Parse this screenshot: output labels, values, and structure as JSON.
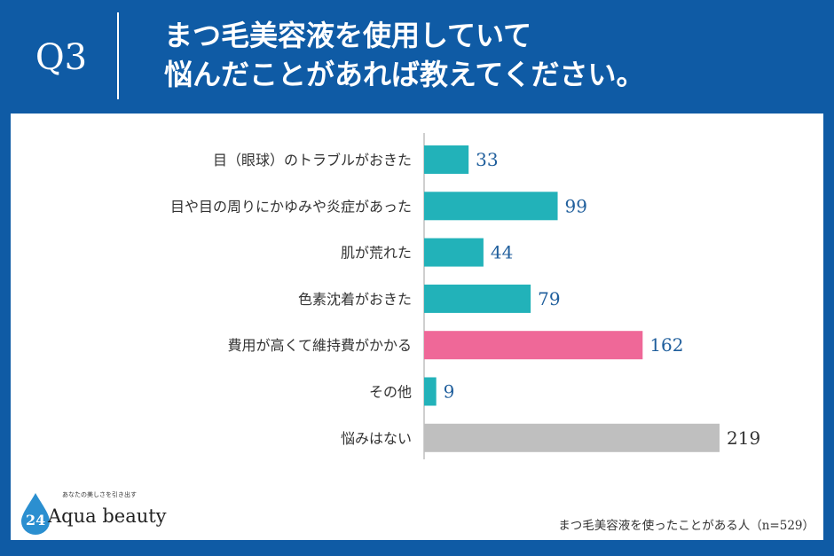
{
  "header": {
    "question": "Q3",
    "title_line1": "まつ毛美容液を使用していて",
    "title_line2": "悩んだことがあれば教えてください。"
  },
  "chart_data": {
    "type": "bar",
    "orientation": "horizontal",
    "categories": [
      "目（眼球）のトラブルがおきた",
      "目や目の周りにかゆみや炎症があった",
      "肌が荒れた",
      "色素沈着がおきた",
      "費用が高くて維持費がかかる",
      "その他",
      "悩みはない"
    ],
    "values": [
      33,
      99,
      44,
      79,
      162,
      9,
      219
    ],
    "colors": [
      "#22b2b9",
      "#22b2b9",
      "#22b2b9",
      "#22b2b9",
      "#ef6898",
      "#22b2b9",
      "#bfbfbf"
    ],
    "label_colors": [
      "#1f5e9c",
      "#1f5e9c",
      "#1f5e9c",
      "#1f5e9c",
      "#1f5e9c",
      "#1f5e9c",
      "#333333"
    ],
    "grid": false,
    "legend": "none"
  },
  "footnote": "まつ毛美容液を使ったことがある人（n=529）",
  "logo": {
    "tagline": "あなたの美しさを引き出す",
    "number": "24",
    "name": "Aqua beauty"
  },
  "colors": {
    "frame": "#0f5ba5",
    "panel": "#ffffff",
    "bar": "#22b2b9",
    "highlight": "#ef6898",
    "neutral": "#bfbfbf"
  }
}
